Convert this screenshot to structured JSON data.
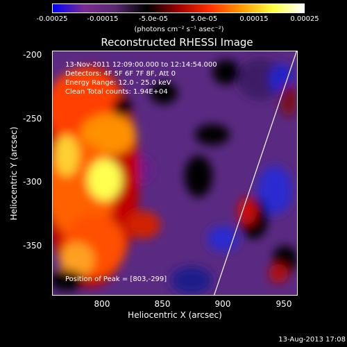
{
  "colorbar": {
    "ticks": [
      "-0.00025",
      "-0.00015",
      "-5.0e-05",
      "5.0e-05",
      "0.00015",
      "0.00025"
    ],
    "unit": "(photons cm⁻² s⁻¹ asec⁻²)",
    "colors": [
      "#0000ff",
      "#7a2c90",
      "#5a2870",
      "#000000",
      "#9e0000",
      "#ff3000",
      "#ff9a00",
      "#ffff40",
      "#ffffff"
    ]
  },
  "image": {
    "title": "Reconstructed RHESSI Image",
    "info": {
      "time": "13-Nov-2011 12:09:00.000 to 12:14:54.000",
      "detectors": "Detectors: 4F 5F 6F 7F 8F, Att 0",
      "energy": "Energy Range: 12.0 - 25.0 keV",
      "algorithm": "Clean     Total counts: 1.94E+04"
    },
    "peak_label": "Position of Peak = [803,-299]"
  },
  "axes": {
    "xlabel": "Heliocentric X (arcsec)",
    "ylabel": "Heliocentric Y (arcsec)",
    "x_ticks": [
      "800",
      "850",
      "900",
      "950"
    ],
    "y_ticks": [
      "-200",
      "-250",
      "-300",
      "-350"
    ],
    "x_range": [
      764,
      954
    ],
    "y_range": [
      -391,
      -200
    ]
  },
  "footer": {
    "timestamp": "13-Aug-2013 17:08"
  }
}
